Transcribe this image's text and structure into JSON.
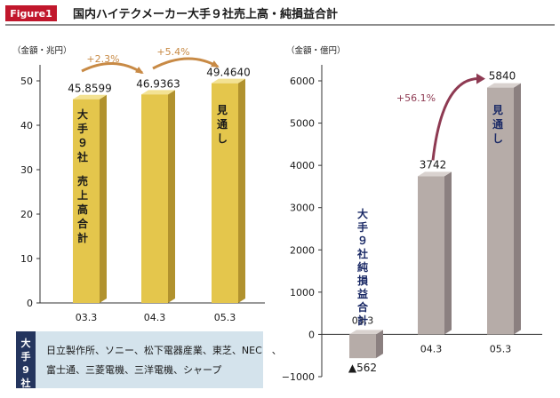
{
  "header": {
    "badge": "Figure1",
    "title": "国内ハイテクメーカー大手９社売上高・純損益合計"
  },
  "left_chart": {
    "unit": "（金額・兆円）",
    "vertical_label": "大手９社　売上高合計",
    "forecast_label": "見通し"
  },
  "right_chart": {
    "unit": "（金額・億円）",
    "vertical_label": "大手９社純損益合計",
    "forecast_label": "見通し",
    "negative_label": "▲562"
  },
  "footer": {
    "tag": "大手9社",
    "line1": "日立製作所、ソニー、松下電器産業、東芝、NEC　、",
    "line2": "富士通、三菱電機、三洋電機、シャープ"
  },
  "colors": {
    "badge": "#c1172c",
    "gold_front": "#e4c64c",
    "gold_side": "#b1922e",
    "gold_top": "#f3e293",
    "gray_front": "#b6aca8",
    "gray_side": "#8b8080",
    "gray_top": "#d9d2cf",
    "arrow_left": "#c88a45",
    "arrow_right": "#8e3a52",
    "footer_bg": "#d4e3ec",
    "footer_tag": "#24355e",
    "label_blue": "#1b2a66"
  },
  "chart_data": [
    {
      "type": "bar",
      "categories": [
        "03.3",
        "04.3",
        "05.3"
      ],
      "values": [
        45.8599,
        46.9363,
        49.464
      ],
      "value_labels": [
        "45.8599",
        "46.9363",
        "49.4640"
      ],
      "growth_labels": [
        "+2.3%",
        "+5.4%"
      ],
      "ylim": [
        0,
        50
      ],
      "yticks": [
        0,
        10,
        20,
        30,
        40,
        50
      ],
      "ylabel": "（金額・兆円）",
      "grid": false
    },
    {
      "type": "bar",
      "categories": [
        "03.3",
        "04.3",
        "05.3"
      ],
      "values": [
        -562,
        3742,
        5840
      ],
      "value_labels": [
        "▲562",
        "3742",
        "5840"
      ],
      "growth_labels": [
        "+56.1%"
      ],
      "ylim": [
        -1000,
        6000
      ],
      "yticks": [
        -1000,
        0,
        1000,
        2000,
        3000,
        4000,
        5000,
        6000
      ],
      "ylabel": "（金額・億円）",
      "grid": false
    }
  ]
}
